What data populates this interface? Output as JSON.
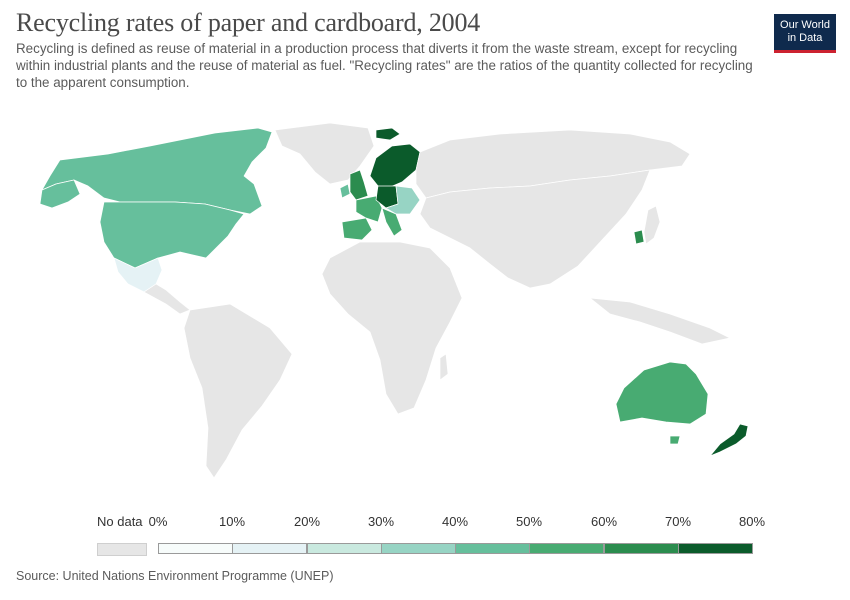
{
  "header": {
    "title": "Recycling rates of paper and cardboard, 2004",
    "subtitle": "Recycling is defined as reuse of material in a production process that diverts it from the waste stream, except for recycling within industrial plants and the reuse of material as fuel. \"Recycling rates\" are the ratios of the quantity collected for recycling to the apparent consumption.",
    "logo_line1": "Our World",
    "logo_line2": "in Data"
  },
  "legend": {
    "no_data_label": "No data",
    "no_data_color": "#e6e6e6",
    "bins": [
      {
        "label": "0%",
        "color": "#f7fcfb"
      },
      {
        "label": "10%",
        "color": "#e5f2f5"
      },
      {
        "label": "20%",
        "color": "#c9e9df"
      },
      {
        "label": "30%",
        "color": "#97d4c4"
      },
      {
        "label": "40%",
        "color": "#66bf9c"
      },
      {
        "label": "50%",
        "color": "#48ab72"
      },
      {
        "label": "60%",
        "color": "#2b8c4e"
      },
      {
        "label": "70%",
        "color": "#0b5b2b"
      }
    ],
    "last_label": "80%"
  },
  "map_data": {
    "color_scheme": {
      "no_data": "#e6e6e6",
      "canada": "#66bf9c",
      "usa": "#66bf9c",
      "mexico": "#e5f2f5",
      "australia": "#48ab72",
      "new_zealand": "#0b5b2b",
      "south_korea": "#2b8c4e",
      "scandinavia": "#0b5b2b",
      "germany": "#0b5b2b",
      "western_europe": "#48ab72",
      "iberia": "#48ab72",
      "uk": "#2b8c4e",
      "ireland": "#66bf9c",
      "central_europe": "#97d4c4",
      "iceland": "#0b5b2b"
    }
  },
  "source": "Source: United Nations Environment Programme (UNEP)"
}
